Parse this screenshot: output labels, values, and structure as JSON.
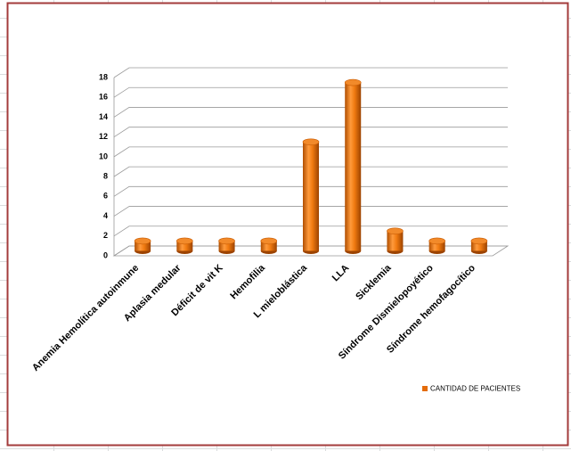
{
  "chart_data": {
    "type": "bar",
    "categories": [
      "Anemia Hemolítica autoinmune",
      "Aplasia medular",
      "Déficit de vit K",
      "Hemofilia",
      "L mieloblástica",
      "LLA",
      "Sicklemia",
      "Síndrome  Dismielopoyético",
      "Síndrome hemofagocítico"
    ],
    "series": [
      {
        "name": "CANTIDAD DE PACIENTES",
        "color": "#e46c0a",
        "values": [
          1,
          1,
          1,
          1,
          11,
          17,
          2,
          1,
          1
        ]
      }
    ],
    "ylim": [
      0,
      18
    ],
    "yticks": [
      0,
      2,
      4,
      6,
      8,
      10,
      12,
      14,
      16,
      18
    ],
    "grid": true
  }
}
